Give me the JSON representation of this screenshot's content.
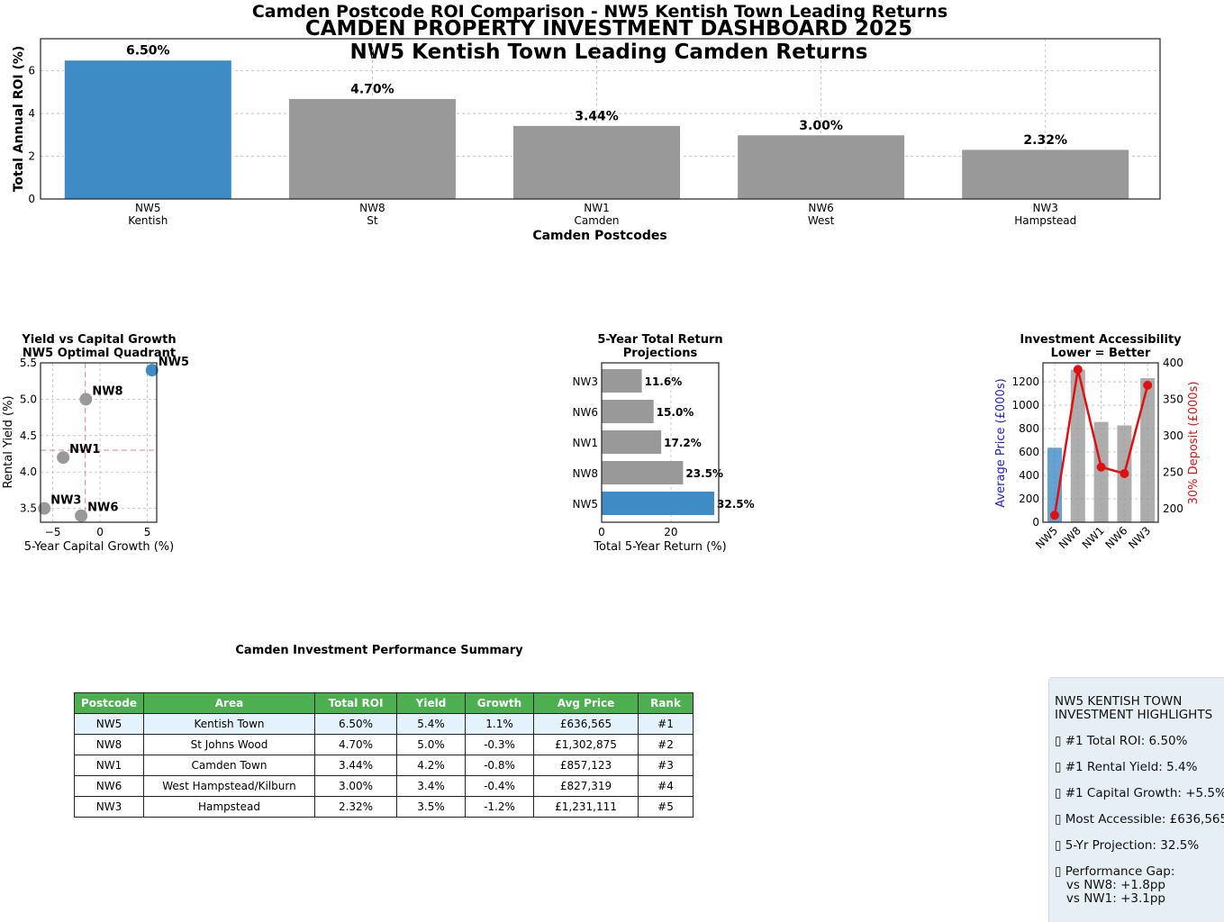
{
  "titles": {
    "top": "Camden Postcode ROI Comparison - NW5 Kentish Town Leading Returns",
    "suptitle_1": "CAMDEN PROPERTY INVESTMENT DASHBOARD 2025",
    "suptitle_2": "NW5 Kentish Town Leading Camden Returns"
  },
  "colors": {
    "highlight": "#3f8bc6",
    "other": "#999999",
    "line": "#e01010",
    "mean_line": "#e88080",
    "table_header": "#4caf50",
    "table_highlight": "#e3f2fd"
  },
  "chart_data": [
    {
      "type": "bar",
      "categories": [
        "NW5\nKentish",
        "NW8\nSt",
        "NW1\nCamden",
        "NW6\nWest",
        "NW3\nHampstead"
      ],
      "values": [
        6.5,
        4.7,
        3.44,
        3.0,
        2.32
      ],
      "data_labels": [
        "6.50%",
        "4.70%",
        "3.44%",
        "3.00%",
        "2.32%"
      ],
      "xlabel": "Camden Postcodes",
      "ylabel": "Total Annual ROI (%)",
      "ylim": [
        0,
        7.5
      ],
      "yticks": [
        0,
        2,
        4,
        6
      ],
      "grid": true
    },
    {
      "type": "scatter",
      "title": "Yield vs Capital Growth\nNW5 Optimal Quadrant",
      "points": [
        {
          "label": "NW5",
          "x": 5.5,
          "y": 5.4
        },
        {
          "label": "NW8",
          "x": -1.5,
          "y": 5.0
        },
        {
          "label": "NW1",
          "x": -3.9,
          "y": 4.2
        },
        {
          "label": "NW3",
          "x": -5.9,
          "y": 3.5
        },
        {
          "label": "NW6",
          "x": -2.0,
          "y": 3.4
        }
      ],
      "mean_x": -1.56,
      "mean_y": 4.3,
      "xlabel": "5-Year Capital Growth (%)",
      "ylabel": "Rental Yield (%)",
      "xlim": [
        -6.3,
        6.0
      ],
      "ylim": [
        3.31,
        5.5
      ],
      "xticks": [
        -5,
        0,
        5
      ],
      "yticks": [
        3.5,
        4.0,
        4.5,
        5.0,
        5.5
      ],
      "grid": true
    },
    {
      "type": "bar",
      "orientation": "horizontal",
      "title": "5-Year Total Return\nProjections",
      "categories": [
        "NW5",
        "NW8",
        "NW1",
        "NW6",
        "NW3"
      ],
      "values": [
        32.5,
        23.5,
        17.2,
        15.0,
        11.6
      ],
      "data_labels": [
        "32.5%",
        "23.5%",
        "17.2%",
        "15.0%",
        "11.6%"
      ],
      "xlabel": "Total 5-Year Return (%)",
      "xlim": [
        0,
        33.8
      ],
      "xticks": [
        0,
        20
      ],
      "grid": true
    },
    {
      "type": "bar",
      "title": "Investment Accessibility\nLower = Better",
      "categories": [
        "NW5",
        "NW8",
        "NW1",
        "NW6",
        "NW3"
      ],
      "series": [
        {
          "name": "Average Price (£000s)",
          "values": [
            636.6,
            1302.9,
            857.1,
            827.3,
            1231.1
          ],
          "axis": "left"
        },
        {
          "name": "30% Deposit (£000s)",
          "values": [
            191.0,
            390.9,
            257.1,
            248.2,
            369.3
          ],
          "axis": "right",
          "type": "line"
        }
      ],
      "ylabel": "Average Price (£000s)",
      "y2label": "30% Deposit (£000s)",
      "ylim": [
        0,
        1362
      ],
      "y2lim": [
        181.5,
        400
      ],
      "yticks": [
        0,
        200,
        400,
        600,
        800,
        1000,
        1200
      ],
      "y2ticks": [
        200,
        250,
        300,
        350,
        400
      ],
      "grid": true
    }
  ],
  "table": {
    "title": "Camden Investment Performance Summary",
    "headers": [
      "Postcode",
      "Area",
      "Total ROI",
      "Yield",
      "Growth",
      "Avg Price",
      "Rank"
    ],
    "rows": [
      [
        "NW5",
        "Kentish Town",
        "6.50%",
        "5.4%",
        "1.1%",
        "£636,565",
        "#1"
      ],
      [
        "NW8",
        "St Johns Wood",
        "4.70%",
        "5.0%",
        "-0.3%",
        "£1,302,875",
        "#2"
      ],
      [
        "NW1",
        "Camden Town",
        "3.44%",
        "4.2%",
        "-0.8%",
        "£857,123",
        "#3"
      ],
      [
        "NW6",
        "West Hampstead/Kilburn",
        "3.00%",
        "3.4%",
        "-0.4%",
        "£827,319",
        "#4"
      ],
      [
        "NW3",
        "Hampstead",
        "2.32%",
        "3.5%",
        "-1.2%",
        "£1,231,111",
        "#5"
      ]
    ]
  },
  "highlights": {
    "title": "NW5 KENTISH TOWN\nINVESTMENT HIGHLIGHTS",
    "items": [
      "▯ #1 Total ROI: 6.50%",
      "▯ #1 Rental Yield: 5.4%",
      "▯ #1 Capital Growth: +5.5%",
      "▯ Most Accessible: £636,565",
      "▯ 5-Yr Projection: 32.5%",
      "▯ Performance Gap:\n   vs NW8: +1.8pp\n   vs NW1: +3.1pp"
    ]
  }
}
